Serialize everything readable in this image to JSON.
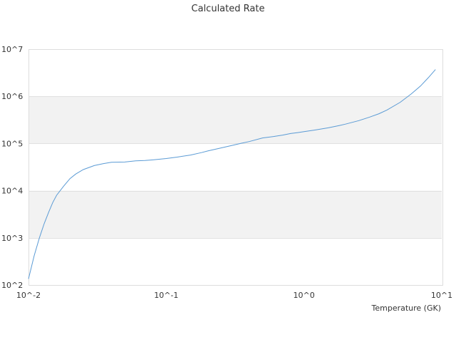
{
  "chart_data": {
    "type": "line",
    "title": "Calculated Rate",
    "xlabel": "Temperature (GK)",
    "ylabel": "",
    "x_scale": "log",
    "y_scale": "log",
    "xlim": [
      0.01,
      10
    ],
    "ylim": [
      100,
      10000000
    ],
    "x_ticks": [
      "10^-2",
      "10^-1",
      "10^0",
      "10^1"
    ],
    "y_ticks": [
      "10^2",
      "10^3",
      "10^4",
      "10^5",
      "10^6",
      "10^7"
    ],
    "grid": "alternating horizontal bands",
    "legend": "none",
    "series": [
      {
        "color": "#5b9bd5",
        "x": [
          0.01,
          0.011,
          0.012,
          0.013,
          0.014,
          0.015,
          0.016,
          0.018,
          0.02,
          0.022,
          0.025,
          0.03,
          0.035,
          0.04,
          0.05,
          0.06,
          0.07,
          0.08,
          0.09,
          0.1,
          0.12,
          0.15,
          0.18,
          0.2,
          0.25,
          0.3,
          0.35,
          0.4,
          0.5,
          0.6,
          0.7,
          0.8,
          0.9,
          1.0,
          1.2,
          1.5,
          1.8,
          2.0,
          2.5,
          3.0,
          3.5,
          4.0,
          5.0,
          6.0,
          7.0,
          8.0,
          9.0
        ],
        "y": [
          135,
          420,
          1000,
          2000,
          3500,
          5600,
          8000,
          12500,
          18000,
          22500,
          28000,
          34000,
          37500,
          40000,
          40500,
          43000,
          43500,
          45000,
          46500,
          48000,
          51500,
          57000,
          64000,
          69500,
          80500,
          91000,
          101000,
          110000,
          131000,
          140500,
          151000,
          163000,
          170000,
          178000,
          193000,
          215000,
          240000,
          258000,
          305000,
          364000,
          428000,
          512000,
          750000,
          1120000,
          1650000,
          2500000,
          3700000
        ]
      }
    ]
  }
}
